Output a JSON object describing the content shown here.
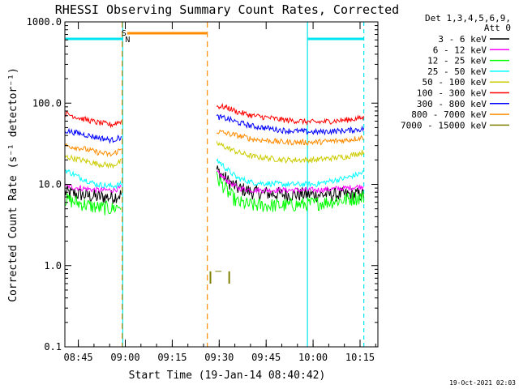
{
  "chart_data": {
    "type": "line",
    "title": "RHESSI Observing Summary Count Rates, Corrected",
    "xlabel": "Start Time (19-Jan-14 08:40:42)",
    "ylabel": "Corrected Count Rate (s⁻¹ detector⁻¹)",
    "yscale": "log",
    "ylim": [
      0.1,
      1000
    ],
    "xlim_minutes": [
      0,
      100
    ],
    "ytick_labels": [
      "0.1",
      "1.0",
      "10.0",
      "100.0",
      "1000.0"
    ],
    "ytick_values": [
      0.1,
      1,
      10,
      100,
      1000
    ],
    "xtick_labels": [
      "08:45",
      "09:00",
      "09:15",
      "09:30",
      "09:45",
      "10:00",
      "10:15"
    ],
    "xtick_values_minutes": [
      4.3,
      19.3,
      34.3,
      49.3,
      64.3,
      79.3,
      94.3
    ],
    "legend_header": [
      "Det 1,3,4,5,6,9,",
      "Att 0"
    ],
    "legend_position": "right",
    "timestamp": "19-Oct-2021 02:03",
    "series": [
      {
        "name": "3 - 6 keV",
        "color": "#000000",
        "segments": [
          {
            "x": [
              0,
              5,
              10,
              15,
              18
            ],
            "y": [
              8.0,
              7.5,
              7.0,
              7.0,
              7.5
            ]
          },
          {
            "x": [
              48.5,
              52,
              55,
              60,
              70,
              80,
              90,
              95.5
            ],
            "y": [
              15,
              11,
              9.0,
              8.0,
              7.5,
              7.5,
              7.5,
              7.5
            ]
          }
        ]
      },
      {
        "name": "6 - 12 keV",
        "color": "#ff00ff",
        "segments": [
          {
            "x": [
              0,
              5,
              10,
              15,
              18
            ],
            "y": [
              9.5,
              9.0,
              8.5,
              8.5,
              9.0
            ]
          },
          {
            "x": [
              48.5,
              52,
              55,
              60,
              70,
              80,
              90,
              95.5
            ],
            "y": [
              14,
              11,
              9.0,
              8.5,
              8.5,
              8.5,
              9.0,
              9.5
            ]
          }
        ]
      },
      {
        "name": "12 - 25 keV",
        "color": "#00ff00",
        "segments": [
          {
            "x": [
              0,
              5,
              10,
              15,
              18
            ],
            "y": [
              6.5,
              5.8,
              5.2,
              5.0,
              5.5
            ]
          },
          {
            "x": [
              48.5,
              52,
              55,
              60,
              70,
              80,
              90,
              95.5
            ],
            "y": [
              12,
              8.0,
              6.0,
              5.5,
              5.5,
              5.8,
              6.5,
              7.0
            ]
          }
        ]
      },
      {
        "name": "25 - 50 keV",
        "color": "#00ffff",
        "segments": [
          {
            "x": [
              0,
              5,
              10,
              15,
              18
            ],
            "y": [
              15,
              12,
              10,
              9.5,
              10
            ]
          },
          {
            "x": [
              48.5,
              52,
              55,
              60,
              70,
              80,
              90,
              95.5
            ],
            "y": [
              20,
              15,
              12,
              10.5,
              10,
              10,
              12,
              14
            ]
          }
        ]
      },
      {
        "name": "50 - 100 keV",
        "color": "#cccc00",
        "segments": [
          {
            "x": [
              0,
              5,
              10,
              15,
              18
            ],
            "y": [
              22,
              20,
              18,
              17,
              19
            ]
          },
          {
            "x": [
              48.5,
              52,
              55,
              60,
              70,
              80,
              90,
              95.5
            ],
            "y": [
              32,
              28,
              25,
              22,
              20,
              20,
              22,
              25
            ]
          }
        ]
      },
      {
        "name": "100 - 300 keV",
        "color": "#ff0000",
        "segments": [
          {
            "x": [
              0,
              5,
              10,
              15,
              18
            ],
            "y": [
              75,
              65,
              58,
              54,
              60
            ]
          },
          {
            "x": [
              48.5,
              52,
              55,
              60,
              70,
              80,
              90,
              95.5
            ],
            "y": [
              92,
              88,
              78,
              70,
              62,
              58,
              62,
              66
            ]
          }
        ]
      },
      {
        "name": "300 - 800 keV",
        "color": "#0000ff",
        "segments": [
          {
            "x": [
              0,
              5,
              10,
              15,
              18
            ],
            "y": [
              46,
              42,
              38,
              35,
              38
            ]
          },
          {
            "x": [
              48.5,
              52,
              55,
              60,
              70,
              80,
              90,
              95.5
            ],
            "y": [
              68,
              64,
              58,
              52,
              46,
              44,
              46,
              48
            ]
          }
        ]
      },
      {
        "name": "800 - 7000 keV",
        "color": "#ff8c00",
        "segments": [
          {
            "x": [
              0,
              5,
              10,
              15,
              18
            ],
            "y": [
              30,
              28,
              25,
              23,
              27
            ]
          },
          {
            "x": [
              48.5,
              52,
              55,
              60,
              70,
              80,
              90,
              95.5
            ],
            "y": [
              45,
              42,
              40,
              36,
              33,
              33,
              35,
              38
            ]
          }
        ]
      },
      {
        "name": "7000 - 15000 keV",
        "color": "#808000",
        "segments": [
          {
            "x": [
              48,
              49,
              50
            ],
            "y": [
              0.85,
              0.85,
              0.85
            ]
          }
        ]
      }
    ],
    "annotations": {
      "saa_label": "S",
      "night_label": "N",
      "saa_bars": [
        [
          22.5,
          45.5
        ]
      ],
      "night_bars": [
        [
          0,
          18.5
        ],
        [
          77.5,
          95.5
        ]
      ],
      "night_boundary_lines": [
        18.5,
        77.5,
        95.5
      ],
      "saa_boundary_lines": [
        18.3,
        45.5
      ],
      "spikes_7000_15000": [
        {
          "x": 46.5,
          "y": 0.6
        },
        {
          "x": 52.5,
          "y": 0.6
        }
      ]
    }
  }
}
